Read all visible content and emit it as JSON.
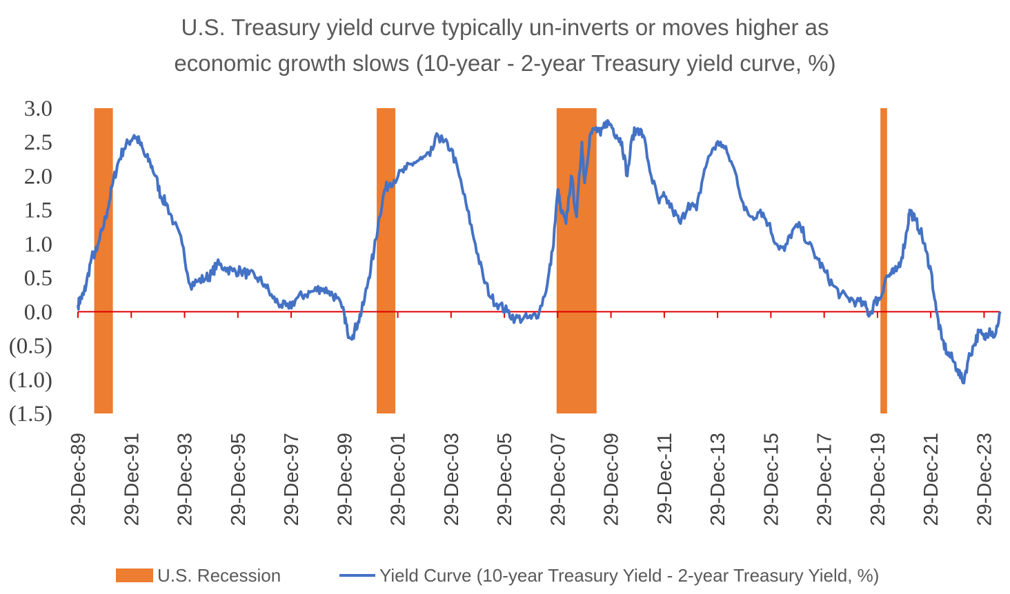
{
  "chart_data": {
    "type": "line",
    "title_lines": [
      "U.S. Treasury yield curve typically un-inverts or moves higher as",
      "economic growth slows (10-year - 2-year Treasury yield curve, %)"
    ],
    "ylim": [
      -1.5,
      3.0
    ],
    "y_ticks": [
      {
        "value": 3.0,
        "label": "3.0"
      },
      {
        "value": 2.5,
        "label": "2.5"
      },
      {
        "value": 2.0,
        "label": "2.0"
      },
      {
        "value": 1.5,
        "label": "1.5"
      },
      {
        "value": 1.0,
        "label": "1.0"
      },
      {
        "value": 0.5,
        "label": "0.5"
      },
      {
        "value": 0.0,
        "label": "0.0"
      },
      {
        "value": -0.5,
        "label": "(0.5)"
      },
      {
        "value": -1.0,
        "label": "(1.0)"
      },
      {
        "value": -1.5,
        "label": "(1.5)"
      }
    ],
    "xlim": [
      1989.99,
      2024.6
    ],
    "x_ticks": [
      {
        "value": 1989.99,
        "label": "29-Dec-89"
      },
      {
        "value": 1991.99,
        "label": "29-Dec-91"
      },
      {
        "value": 1993.99,
        "label": "29-Dec-93"
      },
      {
        "value": 1995.99,
        "label": "29-Dec-95"
      },
      {
        "value": 1997.99,
        "label": "29-Dec-97"
      },
      {
        "value": 1999.99,
        "label": "29-Dec-99"
      },
      {
        "value": 2001.99,
        "label": "29-Dec-01"
      },
      {
        "value": 2003.99,
        "label": "29-Dec-03"
      },
      {
        "value": 2005.99,
        "label": "29-Dec-05"
      },
      {
        "value": 2007.99,
        "label": "29-Dec-07"
      },
      {
        "value": 2009.99,
        "label": "29-Dec-09"
      },
      {
        "value": 2011.99,
        "label": "29-Dec-11"
      },
      {
        "value": 2013.99,
        "label": "29-Dec-13"
      },
      {
        "value": 2015.99,
        "label": "29-Dec-15"
      },
      {
        "value": 2017.99,
        "label": "29-Dec-17"
      },
      {
        "value": 2019.99,
        "label": "29-Dec-19"
      },
      {
        "value": 2021.99,
        "label": "29-Dec-21"
      },
      {
        "value": 2023.99,
        "label": "29-Dec-23"
      }
    ],
    "recessions": [
      {
        "start": 1990.6,
        "end": 1991.3
      },
      {
        "start": 2001.2,
        "end": 2001.9
      },
      {
        "start": 2007.95,
        "end": 2009.45
      },
      {
        "start": 2020.1,
        "end": 2020.35
      }
    ],
    "series": [
      {
        "name": "Yield Curve (10-year Treasury Yield - 2-year Treasury Yield, %)",
        "x": [
          1989.99,
          1990.1,
          1990.2,
          1990.3,
          1990.5,
          1990.7,
          1990.9,
          1991.1,
          1991.3,
          1991.5,
          1991.7,
          1991.9,
          1992.1,
          1992.3,
          1992.5,
          1992.7,
          1992.9,
          1993.1,
          1993.3,
          1993.6,
          1993.9,
          1994.2,
          1994.5,
          1994.8,
          1995.0,
          1995.2,
          1995.5,
          1995.8,
          1996.1,
          1996.4,
          1996.7,
          1997.0,
          1997.3,
          1997.6,
          1997.9,
          1998.2,
          1998.5,
          1998.8,
          1999.1,
          1999.4,
          1999.7,
          1999.99,
          2000.1,
          2000.3,
          2000.5,
          2000.7,
          2000.9,
          2001.1,
          2001.3,
          2001.5,
          2001.7,
          2002.0,
          2002.3,
          2002.6,
          2002.9,
          2003.2,
          2003.5,
          2003.7,
          2004.0,
          2004.3,
          2004.6,
          2004.9,
          2005.2,
          2005.5,
          2005.8,
          2006.1,
          2006.4,
          2006.7,
          2007.0,
          2007.3,
          2007.6,
          2007.8,
          2008.0,
          2008.1,
          2008.3,
          2008.5,
          2008.7,
          2008.9,
          2009.0,
          2009.2,
          2009.4,
          2009.6,
          2009.8,
          2010.0,
          2010.2,
          2010.4,
          2010.6,
          2010.8,
          2011.0,
          2011.2,
          2011.5,
          2011.8,
          2012.0,
          2012.3,
          2012.6,
          2012.9,
          2013.2,
          2013.5,
          2013.8,
          2014.1,
          2014.4,
          2014.7,
          2015.0,
          2015.3,
          2015.6,
          2015.9,
          2016.2,
          2016.5,
          2016.8,
          2017.1,
          2017.4,
          2017.7,
          2018.0,
          2018.3,
          2018.6,
          2018.9,
          2019.2,
          2019.5,
          2019.7,
          2019.9,
          2020.1,
          2020.3,
          2020.5,
          2020.7,
          2020.9,
          2021.1,
          2021.2,
          2021.4,
          2021.6,
          2021.8,
          2022.0,
          2022.2,
          2022.4,
          2022.6,
          2022.8,
          2023.0,
          2023.2,
          2023.4,
          2023.6,
          2023.8,
          2024.0,
          2024.2,
          2024.4,
          2024.6
        ],
        "values": [
          0.1,
          0.2,
          0.25,
          0.4,
          0.8,
          0.9,
          1.2,
          1.5,
          1.9,
          2.2,
          2.4,
          2.5,
          2.6,
          2.5,
          2.3,
          2.2,
          2.0,
          1.7,
          1.6,
          1.3,
          1.0,
          0.4,
          0.45,
          0.5,
          0.55,
          0.7,
          0.65,
          0.6,
          0.6,
          0.55,
          0.5,
          0.4,
          0.2,
          0.1,
          0.05,
          0.2,
          0.25,
          0.3,
          0.35,
          0.3,
          0.2,
          -0.05,
          -0.3,
          -0.35,
          -0.15,
          0.1,
          0.5,
          0.9,
          1.4,
          1.8,
          1.9,
          2.0,
          2.1,
          2.2,
          2.25,
          2.3,
          2.6,
          2.5,
          2.4,
          2.0,
          1.5,
          1.0,
          0.5,
          0.2,
          0.1,
          0.0,
          -0.1,
          -0.1,
          -0.1,
          0.0,
          0.4,
          0.9,
          1.8,
          1.5,
          1.3,
          2.0,
          1.4,
          2.5,
          1.9,
          2.6,
          2.7,
          2.6,
          2.8,
          2.75,
          2.6,
          2.5,
          2.0,
          2.6,
          2.7,
          2.6,
          2.0,
          1.6,
          1.7,
          1.5,
          1.3,
          1.6,
          1.5,
          2.1,
          2.4,
          2.5,
          2.3,
          2.0,
          1.5,
          1.4,
          1.5,
          1.3,
          1.0,
          0.9,
          1.2,
          1.25,
          1.0,
          0.8,
          0.6,
          0.4,
          0.25,
          0.2,
          0.15,
          0.1,
          -0.05,
          0.15,
          0.2,
          0.5,
          0.55,
          0.6,
          0.8,
          1.2,
          1.5,
          1.35,
          1.2,
          0.9,
          0.6,
          0.0,
          -0.4,
          -0.6,
          -0.7,
          -0.85,
          -1.05,
          -0.7,
          -0.5,
          -0.3,
          -0.4,
          -0.25,
          -0.35,
          0.0
        ]
      }
    ],
    "legend": {
      "position": "bottom",
      "recession_label": "U.S. Recession",
      "line_label": "Yield Curve (10-year Treasury Yield - 2-year Treasury Yield, %)"
    },
    "colors": {
      "line": "#4472C4",
      "recession": "#ED7D31",
      "zero_line": "#E00000"
    },
    "grid": false
  }
}
